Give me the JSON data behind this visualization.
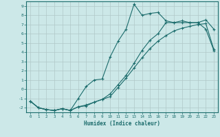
{
  "xlabel": "Humidex (Indice chaleur)",
  "background_color": "#cce8e8",
  "grid_color": "#b0c8c8",
  "line_color": "#1a6b6b",
  "xlim": [
    -0.5,
    23.5
  ],
  "ylim": [
    -2.5,
    9.5
  ],
  "xticks": [
    0,
    1,
    2,
    3,
    4,
    5,
    6,
    7,
    8,
    9,
    10,
    11,
    12,
    13,
    14,
    15,
    16,
    17,
    18,
    19,
    20,
    21,
    22,
    23
  ],
  "yticks": [
    -2,
    -1,
    0,
    1,
    2,
    3,
    4,
    5,
    6,
    7,
    8,
    9
  ],
  "line1_x": [
    0,
    1,
    2,
    3,
    4,
    5,
    6,
    7,
    8,
    9,
    10,
    11,
    12,
    13,
    14,
    15,
    16,
    17,
    18,
    19,
    20,
    21,
    22,
    23
  ],
  "line1_y": [
    -1.3,
    -2.0,
    -2.2,
    -2.3,
    -2.1,
    -2.3,
    -1.9,
    -1.8,
    -1.4,
    -1.1,
    -0.8,
    0.2,
    1.2,
    2.3,
    3.4,
    4.4,
    5.2,
    5.8,
    6.3,
    6.6,
    6.8,
    7.0,
    7.1,
    4.3
  ],
  "line2_x": [
    0,
    1,
    2,
    3,
    4,
    5,
    6,
    7,
    8,
    9,
    10,
    11,
    12,
    13,
    14,
    15,
    16,
    17,
    18,
    19,
    20,
    21,
    22,
    23
  ],
  "line2_y": [
    -1.3,
    -2.0,
    -2.2,
    -2.3,
    -2.1,
    -2.3,
    -1.0,
    0.3,
    1.0,
    1.1,
    3.5,
    5.2,
    6.5,
    9.2,
    8.0,
    8.2,
    8.3,
    7.4,
    7.2,
    7.2,
    7.2,
    7.2,
    6.5,
    4.2
  ],
  "line3_x": [
    0,
    1,
    2,
    3,
    4,
    5,
    6,
    7,
    8,
    9,
    10,
    11,
    12,
    13,
    14,
    15,
    16,
    17,
    18,
    19,
    20,
    21,
    22,
    23
  ],
  "line3_y": [
    -1.3,
    -2.0,
    -2.2,
    -2.3,
    -2.1,
    -2.3,
    -1.9,
    -1.7,
    -1.4,
    -1.1,
    -0.5,
    0.5,
    1.5,
    2.8,
    4.2,
    5.3,
    6.0,
    7.2,
    7.2,
    7.4,
    7.2,
    7.2,
    7.5,
    6.5
  ]
}
